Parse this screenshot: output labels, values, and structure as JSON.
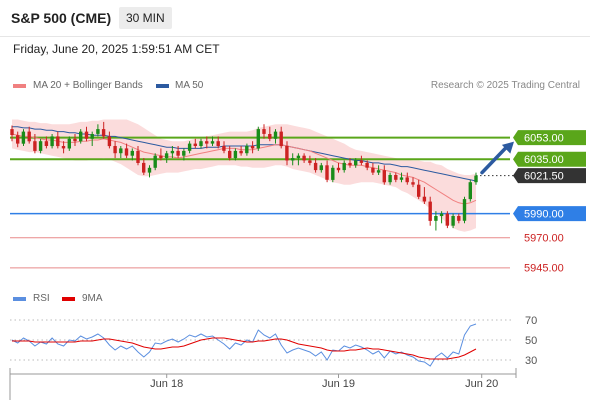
{
  "header": {
    "title": "S&P 500 (CME)",
    "timeframe": "30 MIN"
  },
  "datetime": "Friday, June 20, 2025 1:59:51 AM CET",
  "legend": {
    "ma20": {
      "label": "MA 20 + Bollinger Bands",
      "color": "#f08080"
    },
    "ma50": {
      "label": "MA 50",
      "color": "#2c5aa0"
    },
    "credit": "Research © 2025 Trading Central"
  },
  "rsi_legend": {
    "rsi": {
      "label": "RSI",
      "color": "#5b8fe0"
    },
    "ma": {
      "label": "9MA",
      "color": "#e00000"
    }
  },
  "colors": {
    "up": "#1a8c1a",
    "down": "#cc2222",
    "support": "#e88a8a",
    "pivot": "#2f7fe6",
    "resistance": "#5aa61a",
    "arrow": "#2c5aa0",
    "current": "#333333"
  },
  "chart_data": [
    {
      "type": "candlestick",
      "title": "S&P 500 (CME)",
      "ylim": [
        5935,
        6080
      ],
      "x_tick_labels": [
        "Jun 18",
        "Jun 19",
        "Jun 20"
      ],
      "x_tick_index": [
        27,
        57,
        82
      ],
      "ohlc": [
        [
          6060,
          6063,
          6050,
          6055
        ],
        [
          6055,
          6058,
          6045,
          6048
        ],
        [
          6048,
          6060,
          6046,
          6058
        ],
        [
          6058,
          6062,
          6048,
          6050
        ],
        [
          6050,
          6056,
          6040,
          6042
        ],
        [
          6042,
          6052,
          6040,
          6050
        ],
        [
          6050,
          6054,
          6044,
          6046
        ],
        [
          6046,
          6056,
          6044,
          6054
        ],
        [
          6054,
          6058,
          6044,
          6046
        ],
        [
          6046,
          6050,
          6040,
          6044
        ],
        [
          6044,
          6054,
          6042,
          6052
        ],
        [
          6052,
          6056,
          6046,
          6050
        ],
        [
          6050,
          6060,
          6048,
          6058
        ],
        [
          6058,
          6062,
          6050,
          6052
        ],
        [
          6052,
          6058,
          6046,
          6056
        ],
        [
          6056,
          6064,
          6054,
          6060
        ],
        [
          6060,
          6066,
          6052,
          6054
        ],
        [
          6054,
          6058,
          6044,
          6046
        ],
        [
          6046,
          6050,
          6036,
          6040
        ],
        [
          6040,
          6046,
          6036,
          6044
        ],
        [
          6044,
          6048,
          6036,
          6038
        ],
        [
          6038,
          6044,
          6034,
          6042
        ],
        [
          6042,
          6046,
          6030,
          6032
        ],
        [
          6032,
          6036,
          6022,
          6024
        ],
        [
          6024,
          6030,
          6020,
          6028
        ],
        [
          6028,
          6040,
          6026,
          6038
        ],
        [
          6038,
          6044,
          6034,
          6036
        ],
        [
          6036,
          6042,
          6032,
          6040
        ],
        [
          6040,
          6046,
          6036,
          6042
        ],
        [
          6042,
          6046,
          6036,
          6038
        ],
        [
          6038,
          6044,
          6034,
          6042
        ],
        [
          6042,
          6050,
          6040,
          6048
        ],
        [
          6048,
          6052,
          6044,
          6046
        ],
        [
          6046,
          6052,
          6044,
          6050
        ],
        [
          6050,
          6054,
          6044,
          6048
        ],
        [
          6048,
          6054,
          6046,
          6050
        ],
        [
          6050,
          6054,
          6044,
          6046
        ],
        [
          6046,
          6050,
          6040,
          6042
        ],
        [
          6042,
          6046,
          6034,
          6036
        ],
        [
          6036,
          6044,
          6034,
          6042
        ],
        [
          6042,
          6046,
          6038,
          6040
        ],
        [
          6040,
          6048,
          6038,
          6046
        ],
        [
          6046,
          6050,
          6040,
          6044
        ],
        [
          6044,
          6062,
          6042,
          6060
        ],
        [
          6060,
          6064,
          6052,
          6056
        ],
        [
          6056,
          6062,
          6050,
          6052
        ],
        [
          6052,
          6060,
          6048,
          6058
        ],
        [
          6058,
          6062,
          6044,
          6046
        ],
        [
          6046,
          6050,
          6030,
          6034
        ],
        [
          6034,
          6040,
          6030,
          6036
        ],
        [
          6036,
          6040,
          6030,
          6038
        ],
        [
          6038,
          6040,
          6032,
          6034
        ],
        [
          6034,
          6038,
          6030,
          6032
        ],
        [
          6032,
          6036,
          6024,
          6026
        ],
        [
          6026,
          6032,
          6024,
          6030
        ],
        [
          6030,
          6034,
          6016,
          6018
        ],
        [
          6018,
          6030,
          6016,
          6028
        ],
        [
          6028,
          6032,
          6024,
          6026
        ],
        [
          6026,
          6034,
          6024,
          6032
        ],
        [
          6032,
          6036,
          6028,
          6030
        ],
        [
          6030,
          6036,
          6028,
          6034
        ],
        [
          6034,
          6038,
          6030,
          6032
        ],
        [
          6032,
          6034,
          6026,
          6028
        ],
        [
          6028,
          6032,
          6022,
          6024
        ],
        [
          6024,
          6030,
          6022,
          6026
        ],
        [
          6026,
          6030,
          6014,
          6016
        ],
        [
          6016,
          6024,
          6014,
          6022
        ],
        [
          6022,
          6024,
          6016,
          6018
        ],
        [
          6018,
          6024,
          6016,
          6020
        ],
        [
          6020,
          6024,
          6014,
          6016
        ],
        [
          6016,
          6020,
          6012,
          6014
        ],
        [
          6014,
          6018,
          6002,
          6004
        ],
        [
          6004,
          6012,
          5998,
          6000
        ],
        [
          6000,
          6004,
          5980,
          5984
        ],
        [
          5984,
          5992,
          5976,
          5988
        ],
        [
          5988,
          5992,
          5982,
          5990
        ],
        [
          5990,
          5992,
          5978,
          5980
        ],
        [
          5980,
          5990,
          5978,
          5988
        ],
        [
          5988,
          5990,
          5982,
          5984
        ],
        [
          5984,
          6004,
          5982,
          6002
        ],
        [
          6002,
          6018,
          6000,
          6016
        ],
        [
          6016,
          6024,
          6014,
          6021.5
        ]
      ],
      "ma20": [
        6056,
        6055,
        6054,
        6054,
        6053,
        6052,
        6051,
        6051,
        6050,
        6049,
        6049,
        6049,
        6050,
        6050,
        6051,
        6051,
        6052,
        6051,
        6050,
        6049,
        6047,
        6045,
        6043,
        6041,
        6040,
        6039,
        6038,
        6037,
        6037,
        6036,
        6037,
        6038,
        6039,
        6040,
        6041,
        6042,
        6043,
        6044,
        6044,
        6044,
        6043,
        6043,
        6043,
        6044,
        6045,
        6046,
        6047,
        6047,
        6046,
        6045,
        6044,
        6043,
        6042,
        6040,
        6038,
        6036,
        6034,
        6032,
        6031,
        6030,
        6030,
        6030,
        6029,
        6028,
        6027,
        6026,
        6025,
        6024,
        6022,
        6021,
        6020,
        6018,
        6016,
        6013,
        6010,
        6007,
        6004,
        6001,
        5999,
        5998,
        5999,
        6001
      ],
      "bb_upper": [
        6068,
        6068,
        6067,
        6066,
        6066,
        6065,
        6065,
        6064,
        6064,
        6064,
        6064,
        6065,
        6066,
        6066,
        6067,
        6067,
        6068,
        6068,
        6068,
        6068,
        6068,
        6066,
        6064,
        6061,
        6058,
        6055,
        6052,
        6051,
        6050,
        6050,
        6050,
        6051,
        6052,
        6053,
        6054,
        6055,
        6056,
        6057,
        6058,
        6058,
        6058,
        6058,
        6059,
        6061,
        6062,
        6063,
        6064,
        6064,
        6064,
        6063,
        6062,
        6061,
        6060,
        6058,
        6056,
        6054,
        6052,
        6050,
        6048,
        6045,
        6043,
        6042,
        6041,
        6040,
        6039,
        6038,
        6037,
        6036,
        6035,
        6035,
        6034,
        6034,
        6033,
        6033,
        6031,
        6030,
        6027,
        6025,
        6023,
        6022,
        6022,
        6023
      ],
      "bb_lower": [
        6044,
        6043,
        6042,
        6041,
        6041,
        6040,
        6039,
        6038,
        6037,
        6036,
        6035,
        6034,
        6034,
        6034,
        6035,
        6035,
        6036,
        6035,
        6033,
        6031,
        6028,
        6025,
        6022,
        6021,
        6021,
        6022,
        6023,
        6024,
        6024,
        6024,
        6025,
        6026,
        6027,
        6027,
        6028,
        6029,
        6030,
        6030,
        6030,
        6030,
        6029,
        6029,
        6028,
        6028,
        6028,
        6029,
        6030,
        6030,
        6029,
        6027,
        6026,
        6025,
        6024,
        6022,
        6020,
        6018,
        6016,
        6015,
        6014,
        6014,
        6015,
        6016,
        6016,
        6016,
        6015,
        6014,
        6013,
        6012,
        6009,
        6007,
        6004,
        6001,
        5998,
        5994,
        5990,
        5986,
        5982,
        5978,
        5976,
        5975,
        5976,
        5978
      ],
      "ma50": [
        6062,
        6062,
        6061,
        6061,
        6060,
        6060,
        6059,
        6059,
        6058,
        6058,
        6057,
        6057,
        6056,
        6056,
        6055,
        6055,
        6055,
        6054,
        6054,
        6053,
        6052,
        6051,
        6050,
        6049,
        6048,
        6047,
        6046,
        6045,
        6045,
        6044,
        6044,
        6044,
        6044,
        6044,
        6045,
        6045,
        6045,
        6046,
        6046,
        6046,
        6046,
        6046,
        6046,
        6047,
        6047,
        6047,
        6047,
        6047,
        6046,
        6045,
        6044,
        6043,
        6042,
        6041,
        6040,
        6039,
        6038,
        6037,
        6036,
        6035,
        6034,
        6034,
        6033,
        6032,
        6032,
        6031,
        6031,
        6030,
        6029,
        6029,
        6028,
        6027,
        6026,
        6025,
        6024,
        6023,
        6022,
        6021,
        6020,
        6019,
        6018,
        6017
      ],
      "levels": [
        {
          "value": 6053.0,
          "label": "6053.00",
          "kind": "resistance"
        },
        {
          "value": 6035.0,
          "label": "6035.00",
          "kind": "resistance"
        },
        {
          "value": 6021.5,
          "label": "6021.50",
          "kind": "current"
        },
        {
          "value": 5990.0,
          "label": "5990.00",
          "kind": "pivot"
        },
        {
          "value": 5970.0,
          "label": "5970.00",
          "kind": "support"
        },
        {
          "value": 5945.0,
          "label": "5945.00",
          "kind": "support"
        }
      ]
    },
    {
      "type": "line",
      "title": "RSI",
      "ylim": [
        20,
        80
      ],
      "y_ticks": [
        70,
        50,
        30
      ],
      "series": [
        {
          "name": "RSI",
          "values": [
            50,
            47,
            52,
            49,
            44,
            48,
            46,
            52,
            46,
            44,
            50,
            49,
            54,
            51,
            53,
            56,
            52,
            45,
            40,
            44,
            41,
            44,
            38,
            33,
            38,
            47,
            46,
            49,
            51,
            48,
            51,
            55,
            53,
            56,
            53,
            54,
            50,
            46,
            41,
            47,
            45,
            50,
            48,
            60,
            55,
            52,
            56,
            45,
            37,
            40,
            42,
            40,
            38,
            34,
            38,
            30,
            40,
            39,
            44,
            42,
            45,
            43,
            40,
            36,
            39,
            32,
            39,
            36,
            38,
            35,
            33,
            29,
            28,
            24,
            33,
            37,
            32,
            38,
            36,
            55,
            64,
            66
          ]
        },
        {
          "name": "9MA",
          "values": [
            49,
            49,
            49,
            49,
            48,
            48,
            48,
            48,
            48,
            48,
            48,
            48,
            49,
            49,
            49,
            50,
            51,
            51,
            50,
            49,
            48,
            47,
            45,
            43,
            42,
            41,
            41,
            42,
            43,
            43,
            44,
            46,
            48,
            50,
            51,
            52,
            52,
            52,
            51,
            50,
            49,
            48,
            48,
            49,
            49,
            50,
            51,
            51,
            50,
            48,
            46,
            45,
            44,
            43,
            42,
            40,
            39,
            39,
            39,
            40,
            40,
            41,
            42,
            41,
            41,
            40,
            39,
            38,
            37,
            36,
            35,
            33,
            32,
            31,
            31,
            31,
            31,
            32,
            33,
            35,
            38,
            41
          ]
        }
      ]
    }
  ]
}
